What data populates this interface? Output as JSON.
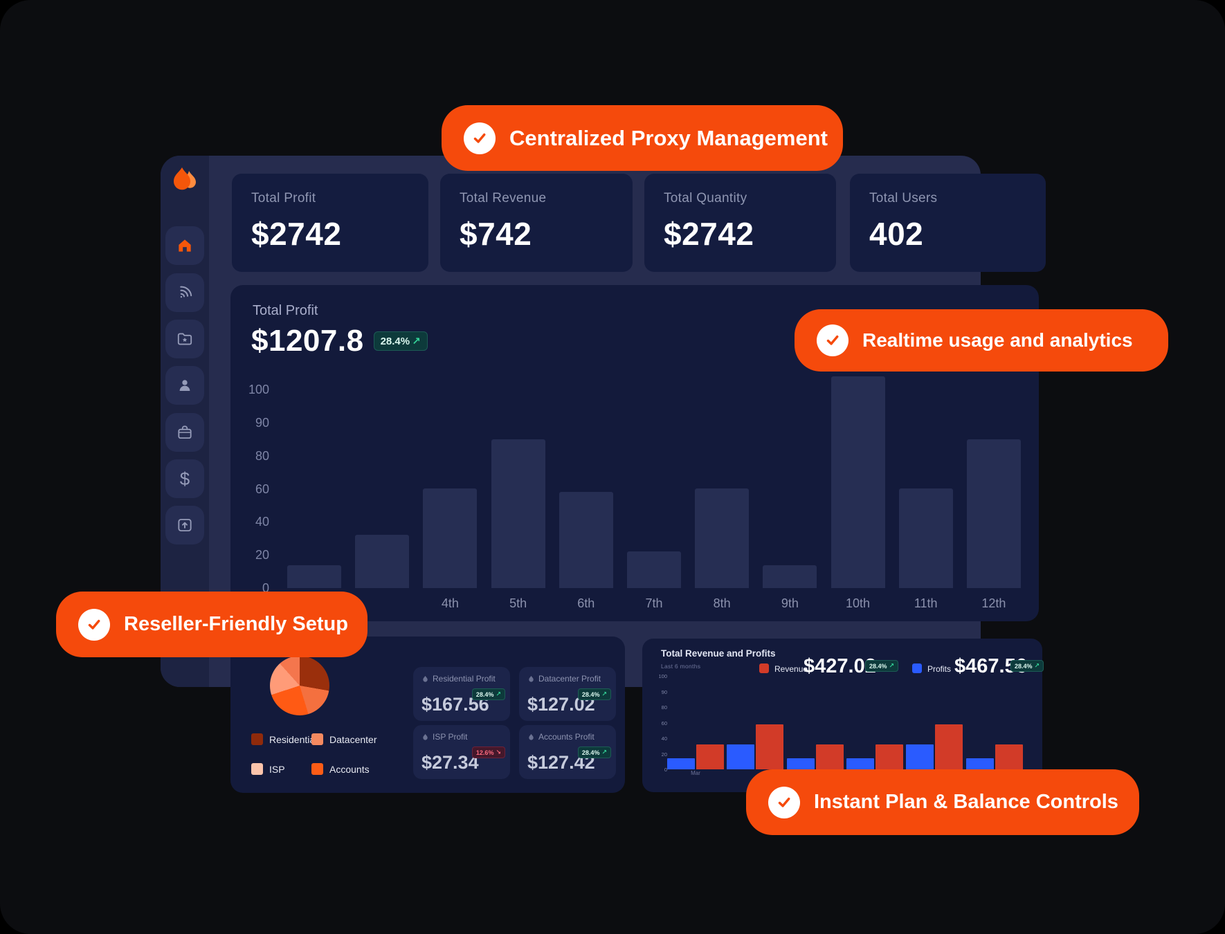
{
  "pills": [
    {
      "id": "centralized",
      "label": "Centralized Proxy Management"
    },
    {
      "id": "realtime",
      "label": "Realtime usage and analytics"
    },
    {
      "id": "reseller",
      "label": "Reseller-Friendly Setup"
    },
    {
      "id": "instant",
      "label": "Instant Plan & Balance Controls"
    }
  ],
  "sidebar": {
    "logo_icon": "flame-logo",
    "items": [
      {
        "icon": "home",
        "active": true
      },
      {
        "icon": "wifi",
        "active": false
      },
      {
        "icon": "folder-star",
        "active": false
      },
      {
        "icon": "user",
        "active": false
      },
      {
        "icon": "briefcase",
        "active": false
      },
      {
        "icon": "dollar",
        "active": false
      },
      {
        "icon": "card-topup",
        "active": false
      }
    ]
  },
  "stats": [
    {
      "label": "Total Profit",
      "value": "$2742"
    },
    {
      "label": "Total Revenue",
      "value": "$742"
    },
    {
      "label": "Total Quantity",
      "value": "$2742"
    },
    {
      "label": "Total Users",
      "value": "402"
    }
  ],
  "profit_chart": {
    "title": "Total Profit",
    "value": "$1207.8",
    "badge": "28.4%",
    "trend": "up"
  },
  "breakdown": {
    "legend": [
      {
        "label": "Residential",
        "color": "#8f2a0b"
      },
      {
        "label": "Datacenter",
        "color": "#f58a60"
      },
      {
        "label": "ISP",
        "color": "#fbc4ac"
      },
      {
        "label": "Accounts",
        "color": "#fd5c16"
      }
    ],
    "cards": [
      {
        "label": "Residential Profit",
        "value": "$167.56",
        "badge": "28.4%",
        "trend": "up"
      },
      {
        "label": "Datacenter Profit",
        "value": "$127.02",
        "badge": "28.4%",
        "trend": "up"
      },
      {
        "label": "ISP Profit",
        "value": "$27.34",
        "badge": "12.6%",
        "trend": "down"
      },
      {
        "label": "Accounts Profit",
        "value": "$127.42",
        "badge": "28.4%",
        "trend": "up"
      }
    ]
  },
  "revenue_panel": {
    "title": "Total Revenue and Profits",
    "subtitle": "Last 6 months",
    "legend": [
      {
        "label": "Revenue",
        "value": "$427.02",
        "badge": "28.4%",
        "trend": "up",
        "color": "#d23b28"
      },
      {
        "label": "Profits",
        "value": "$467.56",
        "badge": "28.4%",
        "trend": "up",
        "color": "#2a5bff"
      }
    ]
  },
  "chart_data": [
    {
      "id": "total-profit-monthly",
      "type": "bar",
      "title": "Total Profit",
      "categories": [
        "",
        "",
        "4th",
        "5th",
        "6th",
        "7th",
        "8th",
        "9th",
        "10th",
        "11th",
        "12th"
      ],
      "values": [
        14,
        32,
        60,
        85,
        58,
        22,
        60,
        14,
        104,
        60,
        85
      ],
      "y_ticks": [
        100,
        90,
        80,
        60,
        40,
        20,
        0
      ],
      "ylim": [
        0,
        100
      ],
      "grid": false,
      "bar_color": "#262e53",
      "legend_position": "none"
    },
    {
      "id": "revenue-vs-profits",
      "type": "bar",
      "title": "Total Revenue and Profits",
      "subtitle": "Last 6 months",
      "categories": [
        "Mar",
        "",
        "",
        "",
        "",
        ""
      ],
      "series": [
        {
          "name": "Profits",
          "color": "#2a5bff",
          "values": [
            14,
            32,
            14,
            14,
            32,
            14
          ]
        },
        {
          "name": "Revenue",
          "color": "#d23b28",
          "values": [
            32,
            58,
            32,
            32,
            58,
            32
          ]
        }
      ],
      "y_ticks": [
        100,
        90,
        80,
        60,
        40,
        20,
        0
      ],
      "ylim": [
        0,
        100
      ],
      "grid": false,
      "legend_position": "top"
    },
    {
      "id": "profit-breakdown",
      "type": "pie",
      "slices": [
        {
          "label": "Residential",
          "color": "#9a2f0c",
          "deg": 100
        },
        {
          "label": "Datacenter",
          "color": "#f4703f",
          "deg": 63
        },
        {
          "label": "Accounts",
          "color": "#ff5a14",
          "deg": 89
        },
        {
          "label": "ISP",
          "color": "#ff9b78",
          "deg": 66
        },
        {
          "label": "Datacenter",
          "color": "#f4764d",
          "deg": 42
        }
      ]
    }
  ],
  "colors": {
    "accent_orange": "#f54a0c",
    "frame": "#262c4e",
    "sidebar": "#1d2342",
    "panel": "#131a3b",
    "card": "#141c3f",
    "bar": "#262e53",
    "teal_badge_bg": "#0d3a3b",
    "teal_arrow": "#34d399",
    "red_badge_bg": "#44182b",
    "red_text": "#fb6a7e",
    "revenue_red": "#d23b28",
    "profits_blue": "#2a5bff"
  }
}
